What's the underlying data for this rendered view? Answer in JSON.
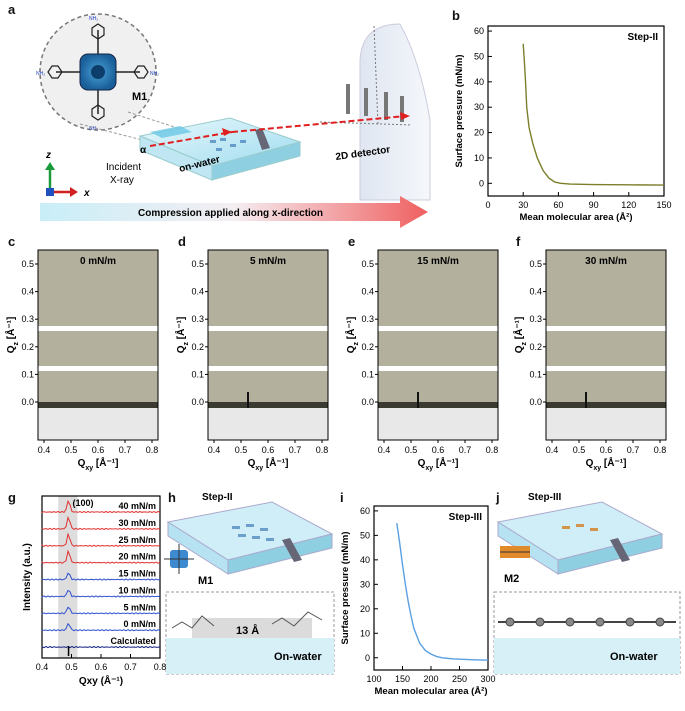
{
  "panel_labels": {
    "a": "a",
    "b": "b",
    "c": "c",
    "d": "d",
    "e": "e",
    "f": "f",
    "g": "g",
    "h": "h",
    "i": "i",
    "j": "j"
  },
  "panel_a": {
    "molecule_label": "M1",
    "nh2_label": "NH₂",
    "incident_label_1": "Incident",
    "incident_label_2": "X-ray",
    "alpha_label": "α",
    "on_water_label": "on-water",
    "detector_label": "2D detector",
    "axis_z": "z",
    "axis_x": "x",
    "compression_label": "Compression applied along x-direction"
  },
  "giwaxs": {
    "ylabel_main": "Q",
    "ylabel_sub": "z",
    "ylabel_unit": " [Å⁻¹]",
    "xlabel_main": "Q",
    "xlabel_sub": "xy",
    "xlabel_unit": " [Å⁻¹]",
    "y_ticks": [
      "0.5",
      "0.4",
      "0.3",
      "0.2",
      "0.1",
      "0.0"
    ],
    "x_ticks": [
      "0.4",
      "0.5",
      "0.6",
      "0.7",
      "0.8"
    ],
    "panels": [
      {
        "label": "0 mN/m"
      },
      {
        "label": "5 mN/m"
      },
      {
        "label": "15 mN/m"
      },
      {
        "label": "30 mN/m"
      }
    ]
  },
  "panel_h": {
    "step": "Step-II",
    "molecule": "M1",
    "spacing": "13 Å",
    "on_water": "On-water"
  },
  "panel_j": {
    "step": "Step-III",
    "molecule": "M2",
    "on_water": "On-water"
  },
  "chart_data": [
    {
      "id": "b",
      "type": "line",
      "annotation": "Step-II",
      "xlabel": "Mean molecular area (Å²)",
      "ylabel": "Surface pressure (mN/m)",
      "xlim": [
        0,
        150
      ],
      "ylim": [
        -5,
        62
      ],
      "x_ticks": [
        0,
        30,
        60,
        90,
        120,
        150
      ],
      "y_ticks": [
        0,
        10,
        20,
        30,
        40,
        50,
        60
      ],
      "color": "#7b7f2a",
      "series": [
        {
          "name": "Step-II",
          "x": [
            30,
            31,
            32,
            33,
            33.5,
            35,
            38,
            42,
            47,
            52,
            57,
            62,
            70,
            90,
            120,
            150
          ],
          "y": [
            55,
            48,
            40,
            30,
            28,
            22,
            16,
            10,
            5,
            2,
            0.5,
            0,
            -0.3,
            -0.5,
            -0.6,
            -0.7
          ]
        }
      ]
    },
    {
      "id": "i",
      "type": "line",
      "annotation": "Step-III",
      "xlabel": "Mean molecular area (Å²)",
      "ylabel": "Surface pressure (mN/m)",
      "xlim": [
        100,
        300
      ],
      "ylim": [
        -5,
        62
      ],
      "x_ticks": [
        100,
        150,
        200,
        250,
        300
      ],
      "y_ticks": [
        0,
        10,
        20,
        30,
        40,
        50,
        60
      ],
      "color": "#5aa0e0",
      "series": [
        {
          "name": "Step-III",
          "x": [
            140,
            145,
            150,
            155,
            160,
            165,
            170,
            180,
            190,
            200,
            210,
            220,
            240,
            270,
            300
          ],
          "y": [
            55,
            47,
            38,
            30,
            23,
            17,
            12,
            6,
            3,
            1.5,
            0.5,
            0,
            -0.5,
            -0.8,
            -1
          ]
        }
      ]
    },
    {
      "id": "g",
      "type": "line",
      "xlabel": "Qxy (Å⁻¹)",
      "ylabel": "Intensity (a.u.)",
      "xlim": [
        0.4,
        0.8
      ],
      "x_ticks": [
        0.4,
        0.5,
        0.6,
        0.7,
        0.8
      ],
      "peak_label": "(100)",
      "peak_position": 0.49,
      "series": [
        {
          "name": "40 mN/m",
          "color": "#e03030"
        },
        {
          "name": "30 mN/m",
          "color": "#e03030"
        },
        {
          "name": "25 mN/m",
          "color": "#e03030"
        },
        {
          "name": "20 mN/m",
          "color": "#e03030"
        },
        {
          "name": "15 mN/m",
          "color": "#3050d0"
        },
        {
          "name": "10 mN/m",
          "color": "#3050d0"
        },
        {
          "name": "5 mN/m",
          "color": "#3050d0"
        },
        {
          "name": "0 mN/m",
          "color": "#3050d0"
        },
        {
          "name": "Calculated",
          "color": "#102080"
        }
      ]
    }
  ]
}
